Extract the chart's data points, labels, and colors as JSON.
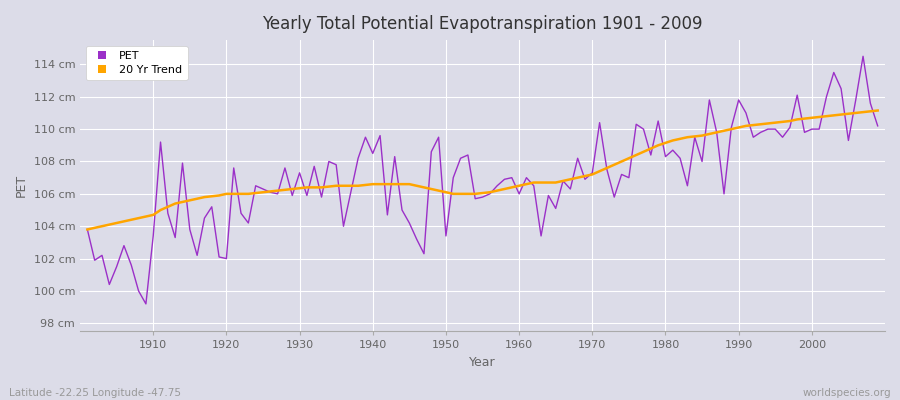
{
  "title": "Yearly Total Potential Evapotranspiration 1901 - 2009",
  "xlabel": "Year",
  "ylabel": "PET",
  "subtitle": "Latitude -22.25 Longitude -47.75",
  "watermark": "worldspecies.org",
  "years": [
    1901,
    1902,
    1903,
    1904,
    1905,
    1906,
    1907,
    1908,
    1909,
    1910,
    1911,
    1912,
    1913,
    1914,
    1915,
    1916,
    1917,
    1918,
    1919,
    1920,
    1921,
    1922,
    1923,
    1924,
    1925,
    1926,
    1927,
    1928,
    1929,
    1930,
    1931,
    1932,
    1933,
    1934,
    1935,
    1936,
    1937,
    1938,
    1939,
    1940,
    1941,
    1942,
    1943,
    1944,
    1945,
    1946,
    1947,
    1948,
    1949,
    1950,
    1951,
    1952,
    1953,
    1954,
    1955,
    1956,
    1957,
    1958,
    1959,
    1960,
    1961,
    1962,
    1963,
    1964,
    1965,
    1966,
    1967,
    1968,
    1969,
    1970,
    1971,
    1972,
    1973,
    1974,
    1975,
    1976,
    1977,
    1978,
    1979,
    1980,
    1981,
    1982,
    1983,
    1984,
    1985,
    1986,
    1987,
    1988,
    1989,
    1990,
    1991,
    1992,
    1993,
    1994,
    1995,
    1996,
    1997,
    1998,
    1999,
    2000,
    2001,
    2002,
    2003,
    2004,
    2005,
    2006,
    2007,
    2008,
    2009
  ],
  "pet": [
    103.8,
    101.9,
    102.2,
    100.4,
    101.5,
    102.8,
    101.6,
    100.0,
    99.2,
    103.4,
    109.2,
    104.8,
    103.3,
    107.9,
    103.8,
    102.2,
    104.5,
    105.2,
    102.1,
    102.0,
    107.6,
    104.8,
    104.2,
    106.5,
    106.3,
    106.1,
    106.0,
    107.6,
    105.9,
    107.3,
    105.9,
    107.7,
    105.8,
    108.0,
    107.8,
    104.0,
    106.1,
    108.2,
    109.5,
    108.5,
    109.6,
    104.7,
    108.3,
    105.0,
    104.2,
    103.2,
    102.3,
    108.6,
    109.5,
    103.4,
    107.0,
    108.2,
    108.4,
    105.7,
    105.8,
    106.0,
    106.5,
    106.9,
    107.0,
    106.0,
    107.0,
    106.5,
    103.4,
    105.9,
    105.1,
    106.8,
    106.3,
    108.2,
    106.9,
    107.3,
    110.4,
    107.5,
    105.8,
    107.2,
    107.0,
    110.3,
    110.0,
    108.4,
    110.5,
    108.3,
    108.7,
    108.2,
    106.5,
    109.5,
    108.0,
    111.8,
    109.8,
    106.0,
    110.1,
    111.8,
    111.0,
    109.5,
    109.8,
    110.0,
    110.0,
    109.5,
    110.1,
    112.1,
    109.8,
    110.0,
    110.0,
    112.0,
    113.5,
    112.5,
    109.3,
    111.8,
    114.5,
    111.6,
    110.2
  ],
  "trend_years": [
    1901,
    1902,
    1903,
    1904,
    1905,
    1906,
    1907,
    1908,
    1909,
    1910,
    1911,
    1912,
    1913,
    1914,
    1915,
    1916,
    1917,
    1918,
    1919,
    1920,
    1921,
    1922,
    1923,
    1924,
    1925,
    1926,
    1927,
    1928,
    1929,
    1930,
    1931,
    1932,
    1933,
    1934,
    1935,
    1936,
    1937,
    1938,
    1939,
    1940,
    1941,
    1942,
    1943,
    1944,
    1945,
    1946,
    1947,
    1948,
    1949,
    1950,
    1951,
    1952,
    1953,
    1954,
    1955,
    1956,
    1957,
    1958,
    1959,
    1960,
    1961,
    1962,
    1963,
    1964,
    1965,
    1966,
    1967,
    1968,
    1969,
    1970,
    1971,
    1972,
    1973,
    1974,
    1975,
    1976,
    1977,
    1978,
    1979,
    1980,
    1981,
    1982,
    1983,
    1984,
    1985,
    1986,
    1987,
    1988,
    1989,
    1990,
    1991,
    1992,
    1993,
    1994,
    1995,
    1996,
    1997,
    1998,
    1999,
    2000,
    2001,
    2002,
    2003,
    2004,
    2005,
    2006,
    2007,
    2008,
    2009
  ],
  "trend": [
    103.8,
    103.9,
    104.0,
    104.1,
    104.2,
    104.3,
    104.4,
    104.5,
    104.6,
    104.7,
    105.0,
    105.2,
    105.4,
    105.5,
    105.6,
    105.7,
    105.8,
    105.85,
    105.9,
    106.0,
    106.0,
    106.0,
    106.0,
    106.05,
    106.1,
    106.15,
    106.2,
    106.25,
    106.3,
    106.35,
    106.4,
    106.4,
    106.4,
    106.45,
    106.5,
    106.5,
    106.5,
    106.5,
    106.55,
    106.6,
    106.6,
    106.6,
    106.6,
    106.6,
    106.6,
    106.5,
    106.4,
    106.3,
    106.2,
    106.1,
    106.0,
    106.0,
    106.0,
    106.0,
    106.05,
    106.1,
    106.2,
    106.3,
    106.4,
    106.5,
    106.6,
    106.7,
    106.7,
    106.7,
    106.7,
    106.8,
    106.9,
    107.0,
    107.1,
    107.2,
    107.4,
    107.6,
    107.8,
    108.0,
    108.2,
    108.4,
    108.6,
    108.8,
    109.0,
    109.15,
    109.3,
    109.4,
    109.5,
    109.55,
    109.6,
    109.7,
    109.8,
    109.9,
    110.0,
    110.1,
    110.2,
    110.25,
    110.3,
    110.35,
    110.4,
    110.45,
    110.5,
    110.6,
    110.65,
    110.7,
    110.75,
    110.8,
    110.85,
    110.9,
    110.95,
    111.0,
    111.05,
    111.1,
    111.15
  ],
  "pet_color": "#9B30C8",
  "trend_color": "#FFA500",
  "bg_color": "#DCDCE8",
  "grid_color": "#FFFFFF",
  "plot_bg_color": "#DCDCE8",
  "ylim": [
    97.5,
    115.5
  ],
  "yticks": [
    98,
    100,
    102,
    104,
    106,
    108,
    110,
    112,
    114
  ],
  "xticks": [
    1910,
    1920,
    1930,
    1940,
    1950,
    1960,
    1970,
    1980,
    1990,
    2000
  ],
  "legend_pet_label": "PET",
  "legend_trend_label": "20 Yr Trend"
}
